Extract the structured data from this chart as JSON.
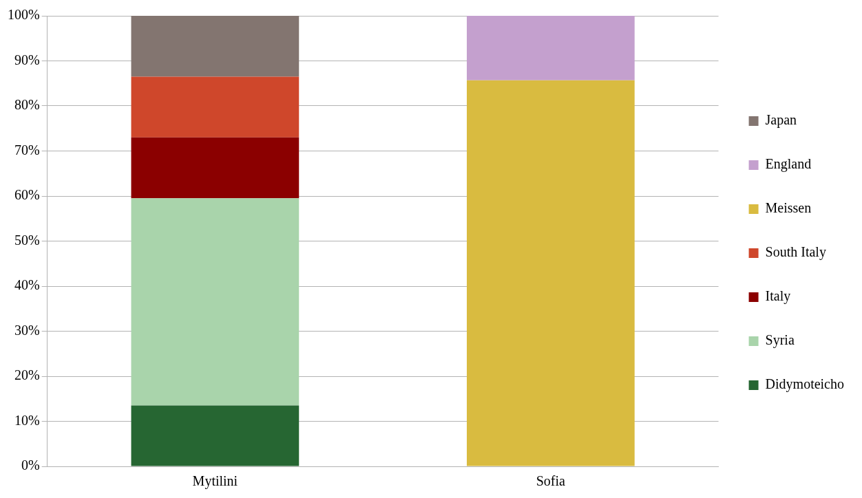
{
  "chart_data": {
    "type": "bar",
    "stacked": true,
    "categories": [
      "Mytilini",
      "Sofia"
    ],
    "series": [
      {
        "name": "Didymoteicho",
        "color": "#266632",
        "values": [
          13.5,
          null
        ]
      },
      {
        "name": "Syria",
        "color": "#a9d4ab",
        "values": [
          46,
          null
        ]
      },
      {
        "name": "Italy",
        "color": "#8b0000",
        "values": [
          13.5,
          null
        ]
      },
      {
        "name": "South Italy",
        "color": "#cf472b",
        "values": [
          13.5,
          null
        ]
      },
      {
        "name": "Meissen",
        "color": "#d9bb40",
        "values": [
          null,
          85.7
        ]
      },
      {
        "name": "England",
        "color": "#c4a0ce",
        "values": [
          null,
          14.3
        ]
      },
      {
        "name": "Japan",
        "color": "#837570",
        "values": [
          13.5,
          null
        ]
      }
    ],
    "ylim": [
      0,
      100
    ],
    "yticks": [
      {
        "value": 0,
        "label": "0%"
      },
      {
        "value": 10,
        "label": "10%"
      },
      {
        "value": 20,
        "label": "20%"
      },
      {
        "value": 30,
        "label": "30%"
      },
      {
        "value": 40,
        "label": "40%"
      },
      {
        "value": 50,
        "label": "50%"
      },
      {
        "value": 60,
        "label": "60%"
      },
      {
        "value": 70,
        "label": "70%"
      },
      {
        "value": 80,
        "label": "80%"
      },
      {
        "value": 90,
        "label": "90%"
      },
      {
        "value": 100,
        "label": "100%"
      }
    ],
    "grid": "y",
    "legend": "right"
  }
}
